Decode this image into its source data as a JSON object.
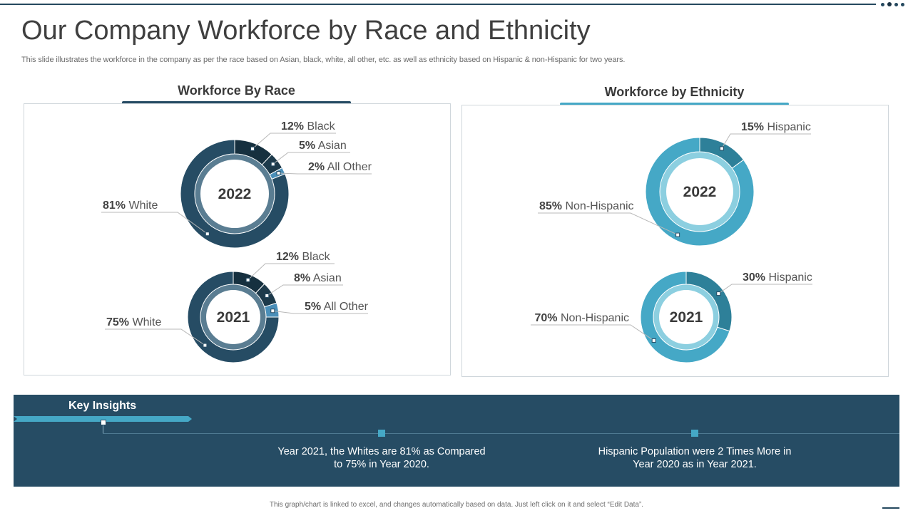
{
  "title": "Our Company Workforce by Race and Ethnicity",
  "subtitle": "This slide illustrates the workforce in the company as per the race based on Asian, black, white, all other, etc. as well as ethnicity based on Hispanic & non-Hispanic for two years.",
  "colors": {
    "navy": "#264c64",
    "black_segment": "#16303f",
    "asian_segment": "#1d3a4b",
    "other_segment": "#4a8fb9",
    "teal": "#45a8c6",
    "hispanic_segment": "#2e8099"
  },
  "chart_data": [
    {
      "type": "pie",
      "title": "Workforce By Race",
      "donuts": [
        {
          "center_label": "2022",
          "slices": [
            {
              "pct": "12%",
              "label": "Black",
              "value": 12
            },
            {
              "pct": "5%",
              "label": "Asian",
              "value": 5
            },
            {
              "pct": "2%",
              "label": "All Other",
              "value": 2
            },
            {
              "pct": "81%",
              "label": "White",
              "value": 81
            }
          ]
        },
        {
          "center_label": "2021",
          "slices": [
            {
              "pct": "12%",
              "label": "Black",
              "value": 12
            },
            {
              "pct": "8%",
              "label": "Asian",
              "value": 8
            },
            {
              "pct": "5%",
              "label": "All Other",
              "value": 5
            },
            {
              "pct": "75%",
              "label": "White",
              "value": 75
            }
          ]
        }
      ]
    },
    {
      "type": "pie",
      "title": "Workforce by Ethnicity",
      "donuts": [
        {
          "center_label": "2022",
          "slices": [
            {
              "pct": "15%",
              "label": "Hispanic",
              "value": 15
            },
            {
              "pct": "85%",
              "label": "Non-Hispanic",
              "value": 85
            }
          ]
        },
        {
          "center_label": "2021",
          "slices": [
            {
              "pct": "30%",
              "label": "Hispanic",
              "value": 30
            },
            {
              "pct": "70%",
              "label": "Non-Hispanic",
              "value": 70
            }
          ]
        }
      ]
    }
  ],
  "insights": {
    "title": "Key Insights",
    "items": [
      "Year 2021, the Whites are 81% as Compared to 75% in Year 2020.",
      "Hispanic Population were 2 Times More in Year 2020 as in Year 2021."
    ]
  },
  "footer": "This graph/chart is linked to excel, and changes automatically based on data. Just left click on it and select “Edit Data”."
}
